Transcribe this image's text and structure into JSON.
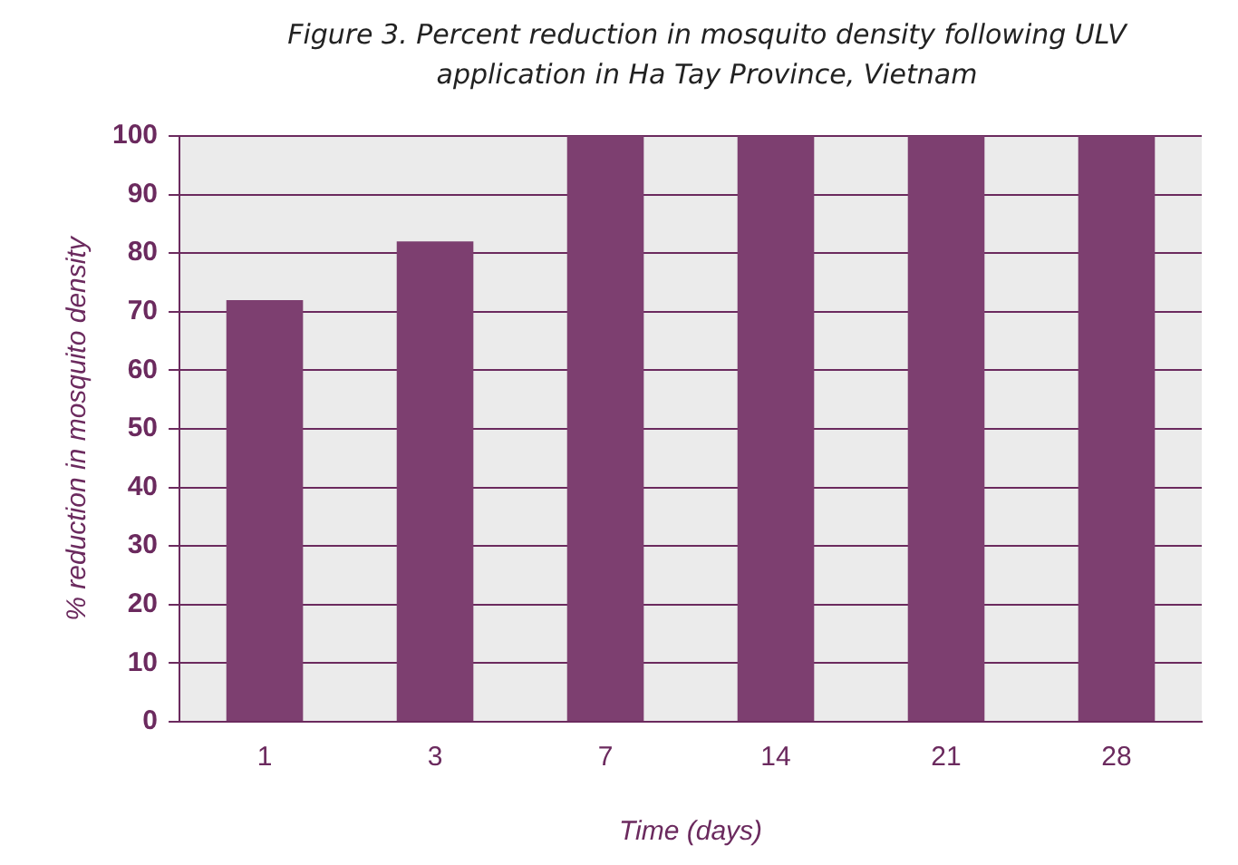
{
  "chart_data": {
    "type": "bar",
    "title": "Figure 3. Percent reduction in mosquito density following ULV application in Ha Tay Province, Vietnam",
    "xlabel": "Time (days)",
    "ylabel": "% reduction in mosquito density",
    "categories": [
      "1",
      "3",
      "7",
      "14",
      "21",
      "28"
    ],
    "values": [
      72,
      82,
      100,
      100,
      100,
      100
    ],
    "color": "#7d3f70",
    "ylim": [
      0,
      100
    ],
    "yticks": [
      0,
      10,
      20,
      30,
      40,
      50,
      60,
      70,
      80,
      90,
      100
    ],
    "grid": "y",
    "legend": false
  }
}
